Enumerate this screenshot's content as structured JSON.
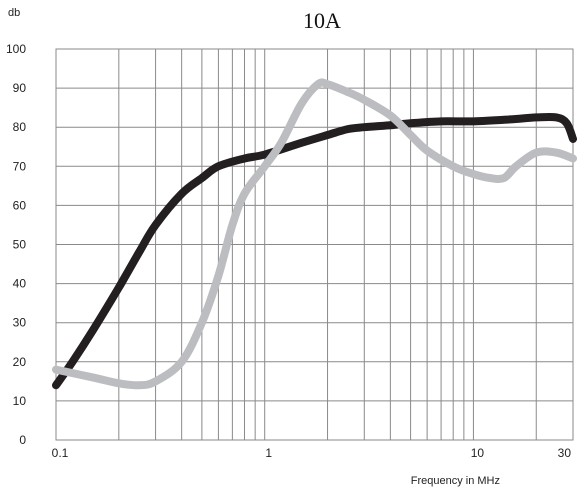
{
  "chart_data": {
    "type": "line",
    "title": "10A",
    "ylabel": "db",
    "xlabel": "Frequency in MHz",
    "x_scale": "log",
    "xlim": [
      0.1,
      30
    ],
    "ylim": [
      0,
      100
    ],
    "y_ticks": [
      "0",
      "10",
      "20",
      "30",
      "40",
      "50",
      "60",
      "70",
      "80",
      "90",
      "100"
    ],
    "x_tick_labels": [
      {
        "value": 0.1,
        "label": "0.1"
      },
      {
        "value": 1,
        "label": "1"
      },
      {
        "value": 10,
        "label": "10"
      },
      {
        "value": 30,
        "label": "30"
      }
    ],
    "grid": true,
    "legend": "none",
    "series": [
      {
        "color": "#231f20",
        "points": [
          [
            0.1,
            14
          ],
          [
            0.12,
            20
          ],
          [
            0.15,
            28
          ],
          [
            0.2,
            39
          ],
          [
            0.25,
            48
          ],
          [
            0.3,
            55
          ],
          [
            0.4,
            63
          ],
          [
            0.5,
            67
          ],
          [
            0.6,
            70
          ],
          [
            0.8,
            72
          ],
          [
            1,
            73
          ],
          [
            1.5,
            76
          ],
          [
            2,
            78
          ],
          [
            2.5,
            79.5
          ],
          [
            3,
            80
          ],
          [
            4,
            80.5
          ],
          [
            5,
            81
          ],
          [
            7,
            81.5
          ],
          [
            10,
            81.5
          ],
          [
            15,
            82
          ],
          [
            20,
            82.5
          ],
          [
            25,
            82.5
          ],
          [
            28,
            81
          ],
          [
            30,
            77
          ]
        ]
      },
      {
        "color": "#bcbdc0",
        "points": [
          [
            0.1,
            18
          ],
          [
            0.15,
            16
          ],
          [
            0.2,
            14.5
          ],
          [
            0.25,
            14
          ],
          [
            0.3,
            15
          ],
          [
            0.4,
            20
          ],
          [
            0.5,
            30
          ],
          [
            0.6,
            42
          ],
          [
            0.7,
            55
          ],
          [
            0.8,
            63
          ],
          [
            1,
            70
          ],
          [
            1.2,
            76
          ],
          [
            1.5,
            86
          ],
          [
            1.8,
            91
          ],
          [
            2,
            91
          ],
          [
            2.5,
            89
          ],
          [
            3,
            87
          ],
          [
            4,
            83
          ],
          [
            5,
            78
          ],
          [
            6,
            74
          ],
          [
            8,
            70
          ],
          [
            10,
            68
          ],
          [
            12,
            67
          ],
          [
            14,
            67
          ],
          [
            16,
            70
          ],
          [
            20,
            73.5
          ],
          [
            25,
            73.5
          ],
          [
            30,
            72
          ]
        ]
      }
    ]
  }
}
